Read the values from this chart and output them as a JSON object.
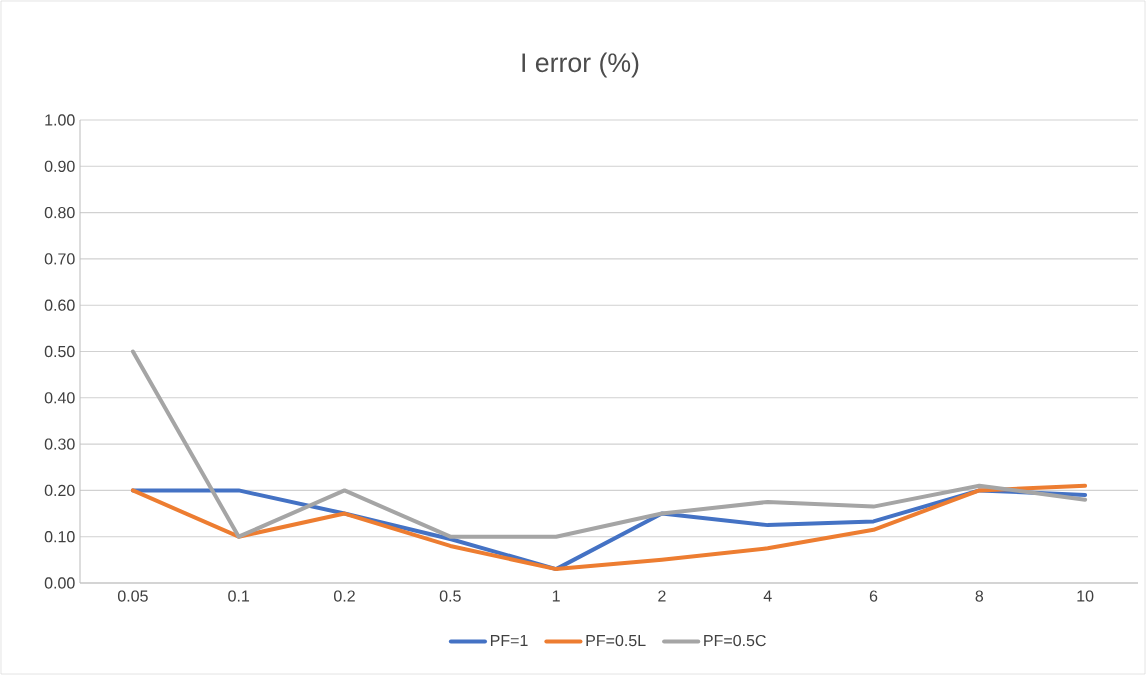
{
  "chart_data": {
    "type": "line",
    "title": "I error (%)",
    "categories": [
      "0.05",
      "0.1",
      "0.2",
      "0.5",
      "1",
      "2",
      "4",
      "6",
      "8",
      "10"
    ],
    "series": [
      {
        "name": "PF=1",
        "color": "#4472c4",
        "values": [
          0.2,
          0.2,
          0.15,
          0.095,
          0.03,
          0.15,
          0.125,
          0.133,
          0.2,
          0.19
        ]
      },
      {
        "name": "PF=0.5L",
        "color": "#ed7d31",
        "values": [
          0.2,
          0.1,
          0.15,
          0.08,
          0.03,
          0.05,
          0.075,
          0.115,
          0.2,
          0.21
        ]
      },
      {
        "name": "PF=0.5C",
        "color": "#a5a5a5",
        "values": [
          0.5,
          0.1,
          0.2,
          0.1,
          0.1,
          0.15,
          0.175,
          0.165,
          0.21,
          0.18
        ]
      }
    ],
    "ylim": [
      0,
      1
    ],
    "yticks": [
      {
        "value": 0,
        "label": "0.00"
      },
      {
        "value": 0.1,
        "label": "0.10"
      },
      {
        "value": 0.2,
        "label": "0.20"
      },
      {
        "value": 0.3,
        "label": "0.30"
      },
      {
        "value": 0.4,
        "label": "0.40"
      },
      {
        "value": 0.5,
        "label": "0.50"
      },
      {
        "value": 0.6,
        "label": "0.60"
      },
      {
        "value": 0.7,
        "label": "0.70"
      },
      {
        "value": 0.8,
        "label": "0.80"
      },
      {
        "value": 0.9,
        "label": "0.90"
      },
      {
        "value": 1,
        "label": "1.00"
      }
    ],
    "grid": "y",
    "legend": "bottom",
    "marker": "none",
    "line_style": "solid"
  }
}
